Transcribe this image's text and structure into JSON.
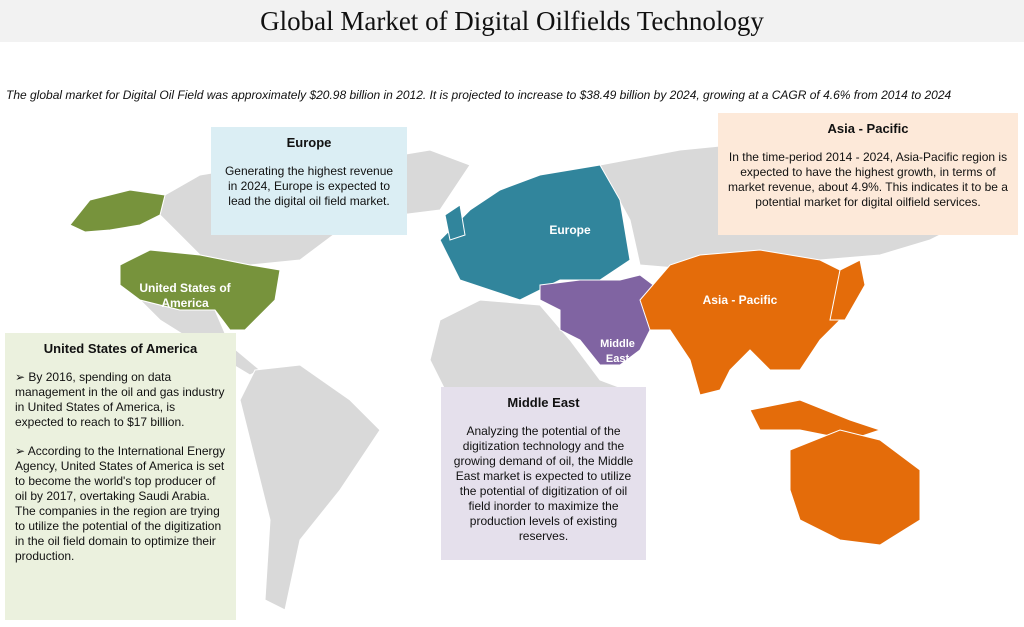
{
  "header": {
    "title": "Global Market of Digital Oilfields Technology",
    "intro": "The global market for Digital Oil Field was approximately $20.98 billion in 2012. It is projected to increase to $38.49 billion by 2024, growing at a CAGR of 4.6% from 2014 to 2024"
  },
  "map_labels": {
    "usa": "United States of America",
    "europe": "Europe",
    "asia_pacific": "Asia - Pacific",
    "middle_east": "Middle East"
  },
  "boxes": {
    "europe": {
      "title": "Europe",
      "text": "Generating the highest revenue in 2024, Europe is expected to lead the digital oil field market."
    },
    "asia_pacific": {
      "title": "Asia - Pacific",
      "text": "In the time-period 2014 - 2024, Asia-Pacific region is expected to have the highest growth, in terms of market revenue, about 4.9%. This indicates it to be a potential market for digital oilfield services."
    },
    "usa": {
      "title": "United States of America",
      "bullets": [
        "➢ By 2016, spending on data management in the oil and gas industry in United States of America, is expected to reach to $17 billion.",
        "➢ According to the International Energy Agency, United States of America is set to become the world's top producer of oil by 2017, overtaking Saudi Arabia. The companies in the region are trying to utilize the potential of the digitization in the oil field domain to optimize their production."
      ]
    },
    "middle_east": {
      "title": "Middle East",
      "text": "Analyzing the potential of the digitization technology and the growing demand of oil, the Middle East market is expected to utilize the potential of digitization of oil field inorder to maximize the production levels of existing reserves."
    }
  }
}
